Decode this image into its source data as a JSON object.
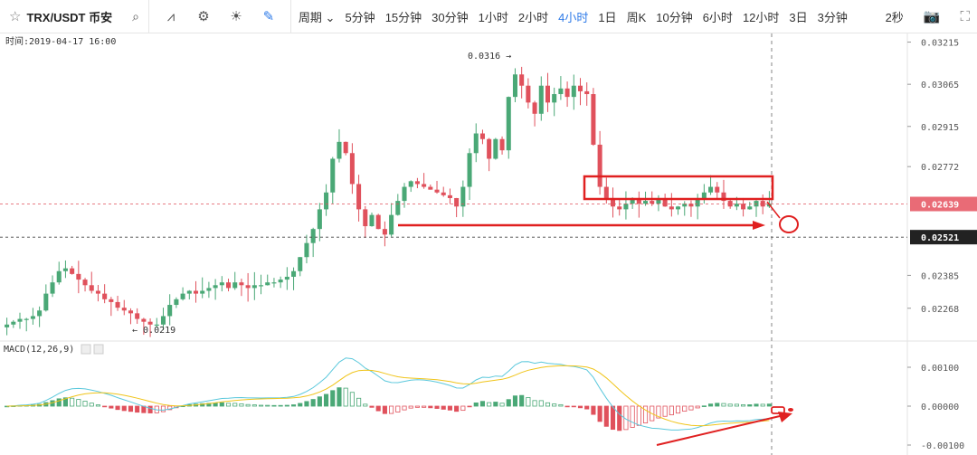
{
  "toolbar": {
    "symbol": "TRX/USDT 币安",
    "icons": [
      "star-icon",
      "search-icon",
      "indicator-icon",
      "settings-gear-icon",
      "theme-sun-icon",
      "draw-pen-icon"
    ],
    "period_dropdown": "周期",
    "periods": [
      "5分钟",
      "15分钟",
      "30分钟",
      "1小时",
      "2小时",
      "4小时",
      "1日",
      "周K",
      "10分钟",
      "6小时",
      "12小时",
      "3日",
      "3分钟"
    ],
    "selected_period": "4小时",
    "countdown": "2秒"
  },
  "chart_data": {
    "type": "candlestick",
    "time_label": "时间:2019-04-17 16:00",
    "price_ticks": [
      "0.03215",
      "0.03065",
      "0.02915",
      "0.02772",
      "0.02639",
      "0.02521",
      "0.02385",
      "0.02268"
    ],
    "price_tick_values": [
      0.03215,
      0.03065,
      0.02915,
      0.02772,
      0.02639,
      0.02521,
      0.02385,
      0.02268
    ],
    "current_price": "0.02639",
    "marked_price": "0.02521",
    "high_label": "0.0316",
    "low_label": "0.0219",
    "ylim": [
      0.0219,
      0.0322
    ],
    "colors": {
      "up": "#4aa876",
      "down": "#e0515c",
      "macd_line": "#5bc8dc",
      "signal_line": "#f0c419",
      "annotation": "#e02020"
    },
    "closes": [
      0.0221,
      0.0222,
      0.0223,
      0.0223,
      0.0224,
      0.0226,
      0.0232,
      0.0236,
      0.024,
      0.0241,
      0.0239,
      0.0237,
      0.0235,
      0.0233,
      0.0232,
      0.023,
      0.0229,
      0.0227,
      0.0226,
      0.0225,
      0.0223,
      0.0222,
      0.0221,
      0.0221,
      0.0224,
      0.0228,
      0.023,
      0.0232,
      0.0233,
      0.0232,
      0.0233,
      0.0234,
      0.0235,
      0.0236,
      0.0234,
      0.0236,
      0.0235,
      0.0234,
      0.0235,
      0.0235,
      0.0236,
      0.0236,
      0.0237,
      0.0238,
      0.024,
      0.0245,
      0.025,
      0.0255,
      0.0262,
      0.0268,
      0.028,
      0.0286,
      0.0282,
      0.0271,
      0.0262,
      0.0256,
      0.026,
      0.0255,
      0.0253,
      0.026,
      0.0265,
      0.027,
      0.0272,
      0.0271,
      0.027,
      0.0269,
      0.0268,
      0.0267,
      0.0266,
      0.0263,
      0.027,
      0.0282,
      0.0289,
      0.0287,
      0.028,
      0.0287,
      0.0283,
      0.0302,
      0.031,
      0.0306,
      0.03,
      0.0296,
      0.0306,
      0.03,
      0.0303,
      0.0305,
      0.0302,
      0.0306,
      0.0304,
      0.0303,
      0.0285,
      0.027,
      0.0266,
      0.0263,
      0.0262,
      0.0264,
      0.0266,
      0.0264,
      0.0265,
      0.0264,
      0.0266,
      0.0263,
      0.0262,
      0.0263,
      0.0264,
      0.0263,
      0.0266,
      0.0268,
      0.027,
      0.0268,
      0.0265,
      0.0263,
      0.0264,
      0.0262,
      0.0263,
      0.0265,
      0.0263,
      0.0264
    ]
  },
  "macd": {
    "label": "MACD(12,26,9)",
    "ticks": [
      "0.00100",
      "0.00000",
      "-0.00100"
    ]
  }
}
